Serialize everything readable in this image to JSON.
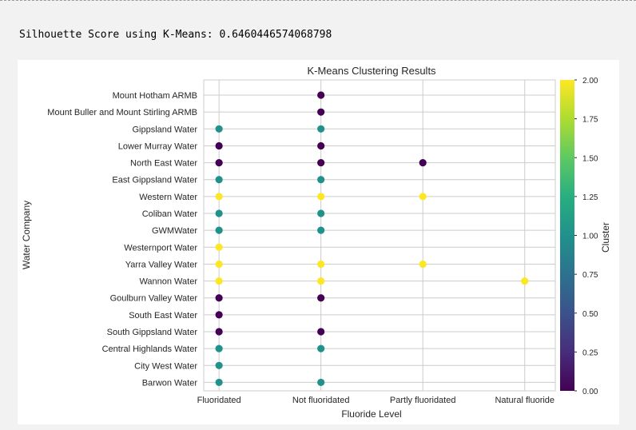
{
  "output": {
    "text": "Silhouette Score using K-Means: 0.6460446574068798"
  },
  "colors": {
    "cluster_0": "#440154",
    "cluster_1": "#21918c",
    "cluster_2": "#fde725",
    "grid": "#cccccc",
    "background": "#ffffff"
  },
  "chart_data": {
    "type": "scatter",
    "title": "K-Means Clustering Results",
    "xlabel": "Fluoride Level",
    "ylabel": "Water Company",
    "x_categories": [
      "Fluoridated",
      "Not fluoridated",
      "Partly fluoridated",
      "Natural fluoride"
    ],
    "y_categories": [
      "Barwon Water",
      "City West Water",
      "Central Highlands Water",
      "South Gippsland Water",
      "South East Water",
      "Goulburn Valley Water",
      "Wannon Water",
      "Yarra Valley Water",
      "Westernport Water",
      "GWMWater",
      "Coliban Water",
      "Western Water",
      "East Gippsland Water",
      "North East Water",
      "Lower Murray Water",
      "Gippsland Water",
      "Mount Buller and Mount Stirling ARMB",
      "Mount Hotham ARMB"
    ],
    "points": [
      {
        "x": "Fluoridated",
        "y": "Barwon Water",
        "cluster": 1
      },
      {
        "x": "Not fluoridated",
        "y": "Barwon Water",
        "cluster": 1
      },
      {
        "x": "Fluoridated",
        "y": "City West Water",
        "cluster": 1
      },
      {
        "x": "Fluoridated",
        "y": "Central Highlands Water",
        "cluster": 1
      },
      {
        "x": "Not fluoridated",
        "y": "Central Highlands Water",
        "cluster": 1
      },
      {
        "x": "Fluoridated",
        "y": "South Gippsland Water",
        "cluster": 0
      },
      {
        "x": "Not fluoridated",
        "y": "South Gippsland Water",
        "cluster": 0
      },
      {
        "x": "Fluoridated",
        "y": "South East Water",
        "cluster": 0
      },
      {
        "x": "Fluoridated",
        "y": "Goulburn Valley Water",
        "cluster": 0
      },
      {
        "x": "Not fluoridated",
        "y": "Goulburn Valley Water",
        "cluster": 0
      },
      {
        "x": "Fluoridated",
        "y": "Wannon Water",
        "cluster": 2
      },
      {
        "x": "Not fluoridated",
        "y": "Wannon Water",
        "cluster": 2
      },
      {
        "x": "Natural fluoride",
        "y": "Wannon Water",
        "cluster": 2
      },
      {
        "x": "Fluoridated",
        "y": "Yarra Valley Water",
        "cluster": 2
      },
      {
        "x": "Not fluoridated",
        "y": "Yarra Valley Water",
        "cluster": 2
      },
      {
        "x": "Partly fluoridated",
        "y": "Yarra Valley Water",
        "cluster": 2
      },
      {
        "x": "Fluoridated",
        "y": "Westernport Water",
        "cluster": 2
      },
      {
        "x": "Fluoridated",
        "y": "GWMWater",
        "cluster": 1
      },
      {
        "x": "Not fluoridated",
        "y": "GWMWater",
        "cluster": 1
      },
      {
        "x": "Fluoridated",
        "y": "Coliban Water",
        "cluster": 1
      },
      {
        "x": "Not fluoridated",
        "y": "Coliban Water",
        "cluster": 1
      },
      {
        "x": "Fluoridated",
        "y": "Western Water",
        "cluster": 2
      },
      {
        "x": "Not fluoridated",
        "y": "Western Water",
        "cluster": 2
      },
      {
        "x": "Partly fluoridated",
        "y": "Western Water",
        "cluster": 2
      },
      {
        "x": "Fluoridated",
        "y": "East Gippsland Water",
        "cluster": 1
      },
      {
        "x": "Not fluoridated",
        "y": "East Gippsland Water",
        "cluster": 1
      },
      {
        "x": "Fluoridated",
        "y": "North East Water",
        "cluster": 0
      },
      {
        "x": "Not fluoridated",
        "y": "North East Water",
        "cluster": 0
      },
      {
        "x": "Partly fluoridated",
        "y": "North East Water",
        "cluster": 0
      },
      {
        "x": "Fluoridated",
        "y": "Lower Murray Water",
        "cluster": 0
      },
      {
        "x": "Not fluoridated",
        "y": "Lower Murray Water",
        "cluster": 0
      },
      {
        "x": "Fluoridated",
        "y": "Gippsland Water",
        "cluster": 1
      },
      {
        "x": "Not fluoridated",
        "y": "Gippsland Water",
        "cluster": 1
      },
      {
        "x": "Not fluoridated",
        "y": "Mount Buller and Mount Stirling ARMB",
        "cluster": 0
      },
      {
        "x": "Not fluoridated",
        "y": "Mount Hotham ARMB",
        "cluster": 0
      }
    ],
    "colorbar": {
      "label": "Cluster",
      "min": 0,
      "max": 2,
      "ticks": [
        "0.00",
        "0.25",
        "0.50",
        "0.75",
        "1.00",
        "1.25",
        "1.50",
        "1.75",
        "2.00"
      ],
      "colormap": "viridis"
    },
    "grid": true
  }
}
